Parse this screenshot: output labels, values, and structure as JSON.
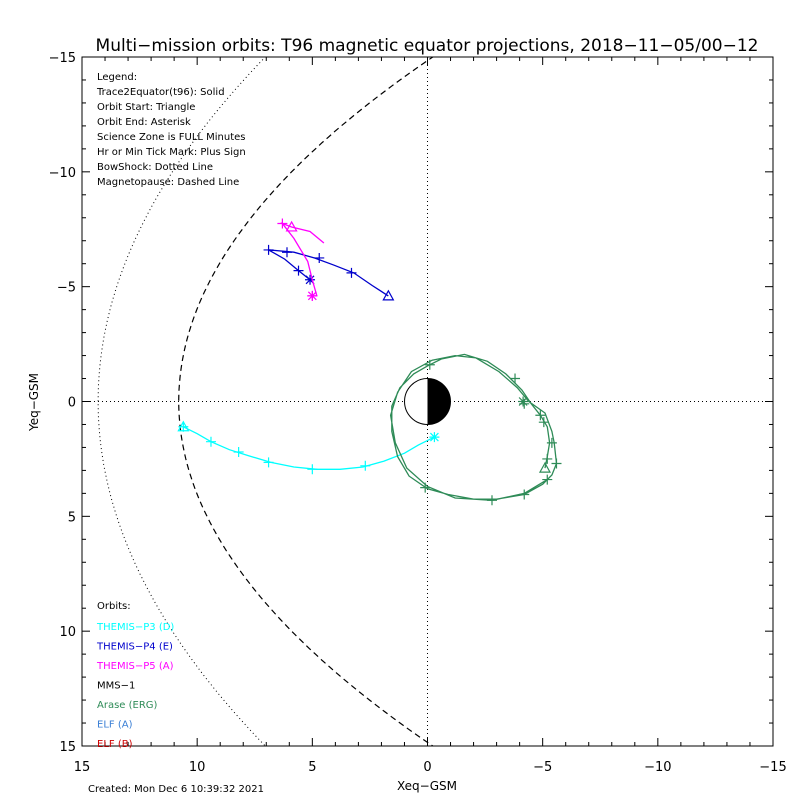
{
  "chart_data": {
    "type": "line",
    "title": "Multi−mission orbits: T96 magnetic equator projections, 2018−11−05/00−12",
    "xlabel": "Xeq−GSM",
    "ylabel": "Yeq−GSM",
    "xlim": [
      15,
      -15
    ],
    "ylim": [
      -15,
      15
    ],
    "x_ticks": [
      "15",
      "10",
      "5",
      "0",
      "−5",
      "−10",
      "−15"
    ],
    "x_tick_values": [
      15,
      10,
      5,
      0,
      -5,
      -10,
      -15
    ],
    "y_ticks": [
      "−15",
      "−10",
      "−5",
      "0",
      "5",
      "10",
      "15"
    ],
    "y_tick_values": [
      -15,
      -10,
      -5,
      0,
      5,
      10,
      15
    ],
    "legend_lines": [
      "Legend:",
      "Trace2Equator(t96): Solid",
      "Orbit Start: Triangle",
      "Orbit End: Asterisk",
      "Science Zone is FULL Minutes",
      "Hr or Min Tick Mark: Plus Sign",
      "BowShock: Dotted Line",
      "Magnetopause: Dashed Line"
    ],
    "orbits_heading": "Orbits:",
    "orbit_labels": [
      {
        "text": "THEMIS−P3 (D)",
        "color": "#00ffff"
      },
      {
        "text": "THEMIS−P4 (E)",
        "color": "#0000cc"
      },
      {
        "text": "THEMIS−P5 (A)",
        "color": "#ff00ff"
      },
      {
        "text": "MMS−1",
        "color": "#000000"
      },
      {
        "text": "Arase (ERG)",
        "color": "#2e8b57"
      },
      {
        "text": "ELF (A)",
        "color": "#3a7fd5"
      },
      {
        "text": "ELF (B)",
        "color": "#cc0000"
      }
    ],
    "created": "Created: Mon Dec  6 10:39:32 2021",
    "magnetopause_x0": 10.8,
    "magnetopause_flare": 10.2,
    "bowshock_x0": 14.3,
    "bowshock_flare": 15.5,
    "series": [
      {
        "name": "THEMIS−P3 (D)",
        "color": "#00ffff",
        "points": [
          [
            10.6,
            1.1
          ],
          [
            10.0,
            1.4
          ],
          [
            9.4,
            1.75
          ],
          [
            8.6,
            2.1
          ],
          [
            7.8,
            2.35
          ],
          [
            6.8,
            2.65
          ],
          [
            5.8,
            2.85
          ],
          [
            4.8,
            2.95
          ],
          [
            3.8,
            2.95
          ],
          [
            2.8,
            2.85
          ],
          [
            1.9,
            2.6
          ],
          [
            1.0,
            2.25
          ],
          [
            0.4,
            1.9
          ],
          [
            -0.3,
            1.55
          ]
        ],
        "ticks": [
          [
            10.6,
            1.1
          ],
          [
            9.4,
            1.75
          ],
          [
            8.2,
            2.2
          ],
          [
            6.9,
            2.65
          ],
          [
            5.0,
            2.95
          ],
          [
            2.7,
            2.8
          ]
        ],
        "start": [
          10.6,
          1.1
        ],
        "end": [
          -0.3,
          1.55
        ]
      },
      {
        "name": "THEMIS−P4 (E)",
        "color": "#0000cc",
        "points": [
          [
            1.7,
            -4.6
          ],
          [
            2.4,
            -5.05
          ],
          [
            3.2,
            -5.6
          ],
          [
            4.1,
            -5.95
          ],
          [
            4.9,
            -6.25
          ],
          [
            5.8,
            -6.5
          ],
          [
            6.9,
            -6.6
          ],
          [
            6.2,
            -6.2
          ],
          [
            5.6,
            -5.7
          ],
          [
            5.1,
            -5.3
          ]
        ],
        "ticks": [
          [
            3.3,
            -5.6
          ],
          [
            4.7,
            -6.25
          ],
          [
            6.1,
            -6.5
          ],
          [
            6.9,
            -6.6
          ],
          [
            5.6,
            -5.7
          ]
        ],
        "start": [
          1.7,
          -4.6
        ],
        "end": [
          5.1,
          -5.3
        ]
      },
      {
        "name": "THEMIS−P5 (A)",
        "color": "#ff00ff",
        "points": [
          [
            4.5,
            -6.9
          ],
          [
            5.1,
            -7.4
          ],
          [
            5.9,
            -7.6
          ],
          [
            6.3,
            -7.75
          ],
          [
            5.8,
            -7.1
          ],
          [
            5.2,
            -6.1
          ],
          [
            5.0,
            -5.3
          ],
          [
            4.8,
            -4.6
          ]
        ],
        "ticks": [
          [
            6.3,
            -7.75
          ],
          [
            5.0,
            -4.6
          ]
        ],
        "start": [
          5.9,
          -7.6
        ],
        "end": [
          5.0,
          -4.6
        ]
      },
      {
        "name": "Arase (ERG)",
        "color": "#2e8b57",
        "points": [
          [
            -5.1,
            2.9
          ],
          [
            -5.2,
            2.4
          ],
          [
            -5.3,
            1.8
          ],
          [
            -5.2,
            1.1
          ],
          [
            -4.9,
            0.6
          ],
          [
            -4.5,
            0.1
          ],
          [
            -4.1,
            -0.5
          ],
          [
            -3.4,
            -1.2
          ],
          [
            -2.6,
            -1.75
          ],
          [
            -1.6,
            -2.05
          ],
          [
            -0.6,
            -1.85
          ],
          [
            0.0,
            -1.55
          ],
          [
            0.6,
            -1.2
          ],
          [
            1.2,
            -0.6
          ],
          [
            1.55,
            0.2
          ],
          [
            1.55,
            1.3
          ],
          [
            1.3,
            2.4
          ],
          [
            0.8,
            3.25
          ],
          [
            0.0,
            3.8
          ],
          [
            -0.9,
            4.05
          ],
          [
            -2.0,
            4.25
          ],
          [
            -3.0,
            4.25
          ],
          [
            -4.2,
            4.05
          ],
          [
            -5.0,
            3.6
          ],
          [
            -5.4,
            3.2
          ],
          [
            -5.6,
            2.7
          ],
          [
            -5.5,
            1.8
          ],
          [
            -5.4,
            1.3
          ],
          [
            -5.1,
            0.5
          ],
          [
            -4.4,
            0.0
          ],
          [
            -3.9,
            -0.6
          ],
          [
            -3.1,
            -1.3
          ],
          [
            -2.1,
            -1.9
          ],
          [
            -1.2,
            -2.0
          ],
          [
            -0.2,
            -1.8
          ],
          [
            0.7,
            -1.3
          ],
          [
            1.3,
            -0.4
          ],
          [
            1.6,
            0.6
          ],
          [
            1.4,
            1.8
          ],
          [
            0.9,
            2.9
          ],
          [
            0.0,
            3.7
          ],
          [
            -1.2,
            4.2
          ],
          [
            -2.8,
            4.3
          ],
          [
            -4.2,
            4.0
          ],
          [
            -5.2,
            3.4
          ]
        ],
        "ticks": [
          [
            -0.1,
            -1.6
          ],
          [
            -3.8,
            -1.0
          ],
          [
            -4.2,
            0.1
          ],
          [
            -4.9,
            0.6
          ],
          [
            -5.05,
            0.9
          ],
          [
            -5.4,
            1.8
          ],
          [
            -5.2,
            2.5
          ],
          [
            -5.6,
            2.7
          ],
          [
            -5.2,
            3.4
          ],
          [
            -4.2,
            4.05
          ],
          [
            -2.8,
            4.3
          ],
          [
            0.1,
            3.75
          ]
        ],
        "start": [
          -5.1,
          2.9
        ],
        "end": [
          -4.15,
          0.0
        ]
      }
    ]
  }
}
